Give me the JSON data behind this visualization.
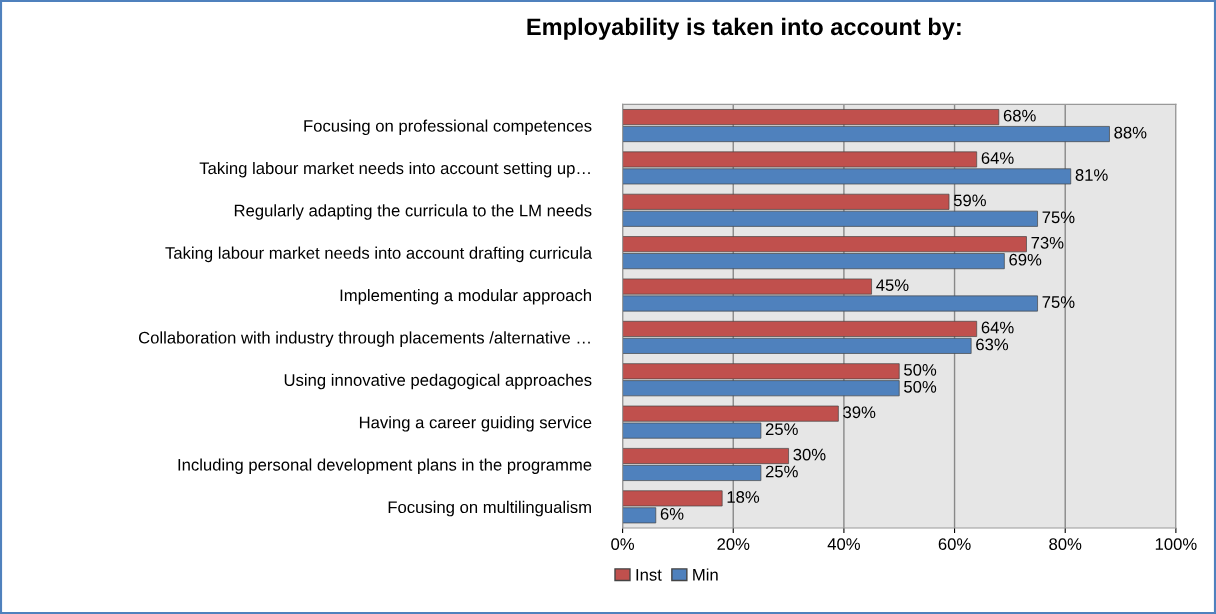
{
  "chart_data": {
    "type": "bar",
    "orientation": "horizontal",
    "title": "Employability is taken into account by:",
    "categories": [
      "Focusing on professional competences",
      "Taking labour market needs into account setting up…",
      "Regularly adapting the curricula to the LM needs",
      "Taking labour market needs into account drafting curricula",
      "Implementing a modular approach",
      "Collaboration with industry through placements /alternative …",
      "Using innovative pedagogical approaches",
      "Having a career guiding service",
      "Including personal development plans in the programme",
      "Focusing on multilingualism"
    ],
    "series": [
      {
        "name": "Inst",
        "color": "#c0504d",
        "values": [
          68,
          64,
          59,
          73,
          45,
          64,
          50,
          39,
          30,
          18
        ],
        "value_labels": [
          "68%",
          "64%",
          "59%",
          "73%",
          "45%",
          "64%",
          "50%",
          "39%",
          "30%",
          "18%"
        ]
      },
      {
        "name": "Min",
        "color": "#4f81bd",
        "values": [
          88,
          81,
          75,
          69,
          75,
          63,
          50,
          25,
          25,
          6
        ],
        "value_labels": [
          "88%",
          "81%",
          "75%",
          "69%",
          "75%",
          "63%",
          "50%",
          "25%",
          "25%",
          "6%"
        ]
      }
    ],
    "xlim": [
      0,
      100
    ],
    "xticks": [
      {
        "value": 0,
        "label": "0%"
      },
      {
        "value": 20,
        "label": "20%"
      },
      {
        "value": 40,
        "label": "40%"
      },
      {
        "value": 60,
        "label": "60%"
      },
      {
        "value": 80,
        "label": "80%"
      },
      {
        "value": 100,
        "label": "100%"
      }
    ],
    "grid": "x",
    "legend": "bottom"
  }
}
